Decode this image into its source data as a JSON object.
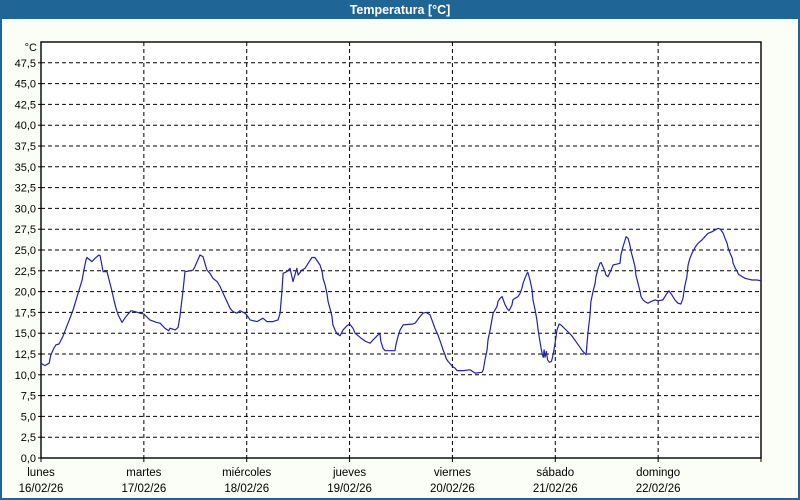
{
  "window": {
    "title": "Temperatura [°C]",
    "titlebar_bg": "#1f6697",
    "frame_color": "#1f6697",
    "bg_color": "#fbfdf7"
  },
  "chart_data": {
    "type": "line",
    "title": "Temperatura [°C]",
    "unit_label": "°C",
    "series_name": "Temperatura",
    "line_color": "#2222aa",
    "grid": true,
    "legend_position": "none",
    "ylim": [
      0,
      50
    ],
    "y_tick_step": 2.5,
    "y_tick_labels": [
      "0,0",
      "2,5",
      "5,0",
      "7,5",
      "10,0",
      "12,5",
      "15,0",
      "17,5",
      "20,0",
      "22,5",
      "25,0",
      "27,5",
      "30,0",
      "32,5",
      "35,0",
      "37,5",
      "40,0",
      "42,5",
      "45,0",
      "47,5"
    ],
    "x_days": [
      {
        "name": "lunes",
        "date": "16/02/26"
      },
      {
        "name": "martes",
        "date": "17/02/26"
      },
      {
        "name": "miércoles",
        "date": "18/02/26"
      },
      {
        "name": "jueves",
        "date": "19/02/26"
      },
      {
        "name": "viernes",
        "date": "20/02/26"
      },
      {
        "name": "sábado",
        "date": "21/02/26"
      },
      {
        "name": "domingo",
        "date": "22/02/26"
      }
    ],
    "hours_total": 168,
    "points": [
      [
        0,
        11.4
      ],
      [
        0.9,
        11.1
      ],
      [
        1.9,
        11.4
      ],
      [
        2.3,
        12.4
      ],
      [
        3,
        13.2
      ],
      [
        3.5,
        13.6
      ],
      [
        4.2,
        13.7
      ],
      [
        5.1,
        14.6
      ],
      [
        5.4,
        15
      ],
      [
        6.3,
        16.2
      ],
      [
        7.5,
        17.8
      ],
      [
        8.2,
        19
      ],
      [
        8.9,
        20.2
      ],
      [
        9.6,
        21.4
      ],
      [
        10,
        22.6
      ],
      [
        10.5,
        23.8
      ],
      [
        10.7,
        24.1
      ],
      [
        11.9,
        23.6
      ],
      [
        12.6,
        24
      ],
      [
        13.5,
        24.4
      ],
      [
        13.8,
        24.3
      ],
      [
        14.5,
        22.4
      ],
      [
        15.4,
        22.4
      ],
      [
        15.9,
        21.4
      ],
      [
        16.6,
        20
      ],
      [
        17,
        19
      ],
      [
        17.5,
        18
      ],
      [
        18,
        17.2
      ],
      [
        18.9,
        16.3
      ],
      [
        19.8,
        17
      ],
      [
        21,
        17.7
      ],
      [
        21.9,
        17.6
      ],
      [
        23.1,
        17.4
      ],
      [
        24,
        17.3
      ],
      [
        25.4,
        16.6
      ],
      [
        27,
        16.3
      ],
      [
        27.8,
        16.2
      ],
      [
        28.9,
        15.6
      ],
      [
        29.8,
        15.3
      ],
      [
        30.1,
        15.6
      ],
      [
        31.3,
        15.4
      ],
      [
        32,
        15.7
      ],
      [
        32.4,
        17
      ],
      [
        33.1,
        20
      ],
      [
        33.6,
        22.4
      ],
      [
        34.8,
        22.5
      ],
      [
        35.5,
        22.6
      ],
      [
        35.9,
        23
      ],
      [
        37.1,
        24.4
      ],
      [
        37.8,
        24.2
      ],
      [
        38.7,
        22.6
      ],
      [
        39.4,
        22.2
      ],
      [
        40.1,
        21.6
      ],
      [
        41.1,
        21.2
      ],
      [
        41.8,
        20.6
      ],
      [
        42.5,
        19.8
      ],
      [
        43.4,
        18.8
      ],
      [
        44.1,
        18
      ],
      [
        44.8,
        17.6
      ],
      [
        45.7,
        17.4
      ],
      [
        46.4,
        17.7
      ],
      [
        47.6,
        17.4
      ],
      [
        48,
        17.2
      ],
      [
        48.8,
        16.6
      ],
      [
        50.4,
        16.4
      ],
      [
        51.8,
        16.8
      ],
      [
        52.7,
        16.4
      ],
      [
        54.1,
        16.4
      ],
      [
        55.3,
        16.6
      ],
      [
        55.8,
        17.4
      ],
      [
        56.2,
        20
      ],
      [
        56.5,
        22.2
      ],
      [
        57.4,
        22.4
      ],
      [
        58.1,
        22.8
      ],
      [
        58.8,
        21.2
      ],
      [
        59.7,
        22.8
      ],
      [
        60,
        22
      ],
      [
        60.9,
        22.6
      ],
      [
        61.6,
        22.8
      ],
      [
        63.2,
        24.1
      ],
      [
        63.9,
        24.1
      ],
      [
        65.1,
        23.2
      ],
      [
        65.6,
        22.4
      ],
      [
        65.8,
        21.6
      ],
      [
        66.3,
        20.8
      ],
      [
        66.7,
        19.8
      ],
      [
        67,
        18.8
      ],
      [
        67.4,
        18
      ],
      [
        67.9,
        17
      ],
      [
        68.1,
        16
      ],
      [
        68.6,
        15.4
      ],
      [
        69.1,
        14.9
      ],
      [
        69.8,
        14.7
      ],
      [
        70.5,
        15.4
      ],
      [
        71.4,
        15.9
      ],
      [
        72,
        16.1
      ],
      [
        72.8,
        15.6
      ],
      [
        73.3,
        15
      ],
      [
        74.7,
        14.4
      ],
      [
        75.8,
        14
      ],
      [
        76.8,
        13.8
      ],
      [
        77.5,
        14.2
      ],
      [
        78.6,
        14.8
      ],
      [
        79.1,
        14.9
      ],
      [
        79.3,
        14
      ],
      [
        79.8,
        13.2
      ],
      [
        80.3,
        12.9
      ],
      [
        82.6,
        12.9
      ],
      [
        82.8,
        13.6
      ],
      [
        83.3,
        14.6
      ],
      [
        83.8,
        15.4
      ],
      [
        84.5,
        16
      ],
      [
        86.8,
        16.1
      ],
      [
        87.3,
        16.2
      ],
      [
        88.4,
        17
      ],
      [
        89.1,
        17.4
      ],
      [
        89.8,
        17.5
      ],
      [
        90.8,
        17.2
      ],
      [
        91,
        16.9
      ],
      [
        91.5,
        16.2
      ],
      [
        91.9,
        15.6
      ],
      [
        92.6,
        14.8
      ],
      [
        93.3,
        13.8
      ],
      [
        93.8,
        13
      ],
      [
        94.3,
        12.4
      ],
      [
        94.5,
        12
      ],
      [
        95,
        11.6
      ],
      [
        95.7,
        11.2
      ],
      [
        96,
        11
      ],
      [
        96.6,
        10.8
      ],
      [
        97.1,
        10.5
      ],
      [
        98.5,
        10.5
      ],
      [
        100.1,
        10.6
      ],
      [
        101.3,
        10.2
      ],
      [
        102.9,
        10.3
      ],
      [
        103.2,
        10.6
      ],
      [
        103.6,
        11.8
      ],
      [
        104.1,
        13
      ],
      [
        104.3,
        14.2
      ],
      [
        104.8,
        15.4
      ],
      [
        105.2,
        16.6
      ],
      [
        105.5,
        17.4
      ],
      [
        106.4,
        18.2
      ],
      [
        106.6,
        18.8
      ],
      [
        107.1,
        19.2
      ],
      [
        107.6,
        19.4
      ],
      [
        108.3,
        18.4
      ],
      [
        108.7,
        18
      ],
      [
        109.2,
        17.7
      ],
      [
        109.9,
        18.4
      ],
      [
        110.1,
        19
      ],
      [
        110.6,
        19.2
      ],
      [
        111.3,
        19.4
      ],
      [
        111.8,
        19.8
      ],
      [
        112.2,
        20.4
      ],
      [
        112.5,
        21
      ],
      [
        112.9,
        21.6
      ],
      [
        113.4,
        22.2
      ],
      [
        113.6,
        22.3
      ],
      [
        114.1,
        21.4
      ],
      [
        114.6,
        20.2
      ],
      [
        114.8,
        19
      ],
      [
        115.3,
        17.8
      ],
      [
        115.7,
        16.6
      ],
      [
        116,
        15.4
      ],
      [
        116.3,
        14.4
      ],
      [
        116.7,
        13.2
      ],
      [
        117,
        12.4
      ],
      [
        117.2,
        12.1
      ],
      [
        117.4,
        13
      ],
      [
        117.6,
        12.1
      ],
      [
        117.9,
        12.8
      ],
      [
        118.2,
        11.8
      ],
      [
        118.6,
        11.5
      ],
      [
        119.1,
        11.6
      ],
      [
        119.4,
        12.2
      ],
      [
        119.7,
        13
      ],
      [
        120,
        14
      ],
      [
        120.4,
        15.4
      ],
      [
        120.9,
        16.1
      ],
      [
        121.3,
        16
      ],
      [
        122.3,
        15.5
      ],
      [
        123.7,
        14.8
      ],
      [
        125.1,
        13.8
      ],
      [
        126.3,
        12.9
      ],
      [
        127,
        12.5
      ],
      [
        127.2,
        12.4
      ],
      [
        127.6,
        15
      ],
      [
        128.1,
        17.2
      ],
      [
        128.3,
        18.8
      ],
      [
        128.8,
        20
      ],
      [
        129.3,
        21
      ],
      [
        129.5,
        21.8
      ],
      [
        130,
        22.8
      ],
      [
        130.4,
        23.4
      ],
      [
        130.7,
        23.5
      ],
      [
        131.1,
        23
      ],
      [
        131.6,
        22.4
      ],
      [
        131.8,
        22
      ],
      [
        132.3,
        21.8
      ],
      [
        133,
        22.6
      ],
      [
        133.5,
        23.2
      ],
      [
        134.4,
        23.3
      ],
      [
        135.1,
        23.4
      ],
      [
        135.3,
        24.4
      ],
      [
        135.8,
        25.4
      ],
      [
        136.3,
        26.2
      ],
      [
        136.5,
        26.6
      ],
      [
        137,
        26.4
      ],
      [
        137.4,
        25.6
      ],
      [
        137.7,
        24.8
      ],
      [
        138.1,
        24
      ],
      [
        138.6,
        23
      ],
      [
        138.8,
        22
      ],
      [
        139.3,
        21
      ],
      [
        139.8,
        20
      ],
      [
        140,
        19.4
      ],
      [
        140.5,
        19
      ],
      [
        140.9,
        18.8
      ],
      [
        141.6,
        18.6
      ],
      [
        142.3,
        18.8
      ],
      [
        143.3,
        19
      ],
      [
        144,
        18.9
      ],
      [
        145.1,
        19
      ],
      [
        145.8,
        19.6
      ],
      [
        146.5,
        20.1
      ],
      [
        147.2,
        19.6
      ],
      [
        147.9,
        19
      ],
      [
        148.6,
        18.6
      ],
      [
        149.3,
        18.5
      ],
      [
        149.8,
        19.2
      ],
      [
        150.2,
        20.6
      ],
      [
        150.7,
        21.8
      ],
      [
        151,
        23.2
      ],
      [
        151.4,
        24
      ],
      [
        151.9,
        24.6
      ],
      [
        152.6,
        25.3
      ],
      [
        153.3,
        25.8
      ],
      [
        154.2,
        26.2
      ],
      [
        154.9,
        26.6
      ],
      [
        155.6,
        27
      ],
      [
        156.6,
        27.2
      ],
      [
        157.3,
        27.4
      ],
      [
        158,
        27.6
      ],
      [
        158.5,
        27.5
      ],
      [
        159.2,
        27
      ],
      [
        159.6,
        26.4
      ],
      [
        160.1,
        25.8
      ],
      [
        160.3,
        25.3
      ],
      [
        160.8,
        24.6
      ],
      [
        161.3,
        24
      ],
      [
        161.5,
        23.4
      ],
      [
        162,
        22.8
      ],
      [
        162.5,
        22.4
      ],
      [
        162.7,
        22.1
      ],
      [
        163.6,
        21.8
      ],
      [
        164.3,
        21.6
      ],
      [
        165,
        21.5
      ],
      [
        165.9,
        21.4
      ],
      [
        167.1,
        21.4
      ],
      [
        168,
        21.3
      ]
    ]
  }
}
